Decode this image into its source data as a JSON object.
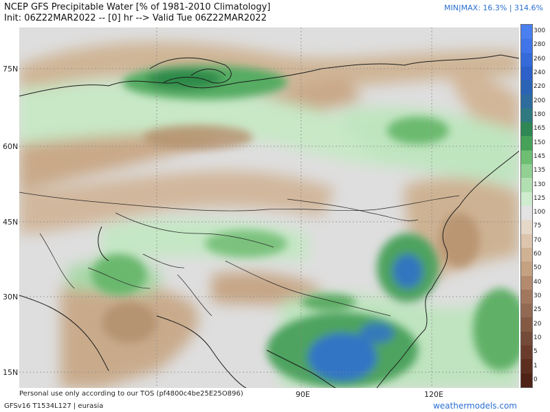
{
  "title": {
    "line1": "NCEP GFS Precipitable Water [% of 1981-2010 Climatology]",
    "line2": "Init: 06Z22MAR2022 -- [0] hr --> Valid Tue 06Z22MAR2022"
  },
  "minmax": "MIN|MAX: 16.3% | 314.6%",
  "map": {
    "lat_labels": [
      "75N",
      "60N",
      "45N",
      "30N",
      "15N"
    ],
    "lon_labels": [
      "90E",
      "120E"
    ],
    "colors": {
      "brown": "#cdb090",
      "tan": "#dcc8b2",
      "gray": "#dedede",
      "lightgreen": "#c3e9c3",
      "green": "#8fcf8f",
      "darkgreen": "#3f9a55",
      "blue": "#2f6fd0"
    }
  },
  "colorbar": {
    "labels": [
      "300",
      "280",
      "260",
      "240",
      "220",
      "200",
      "180",
      "165",
      "150",
      "145",
      "135",
      "130",
      "125",
      "100",
      "75",
      "70",
      "60",
      "50",
      "40",
      "30",
      "25",
      "20",
      "10",
      "5",
      "1",
      "0"
    ],
    "colors": [
      "#4a7ff0",
      "#3f75e8",
      "#356ad9",
      "#2d60c8",
      "#2b64b5",
      "#2e6c9e",
      "#2f7a80",
      "#2e8754",
      "#45a258",
      "#6dbd72",
      "#92d093",
      "#b2dfb2",
      "#cfeccf",
      "#e3e3e3",
      "#e6d8c9",
      "#dcc4ad",
      "#cfb193",
      "#c4a181",
      "#b38a6e",
      "#a1775e",
      "#926a54",
      "#845a45",
      "#744a38",
      "#6a3c2c",
      "#5c2e20",
      "#4e2216"
    ]
  },
  "footer": {
    "tos": "Personal use only according to our TOS (pf4800c4be25E25O896)",
    "model": "GFSv16 T1534L127 | eurasia",
    "brand": "weathermodels.com"
  }
}
